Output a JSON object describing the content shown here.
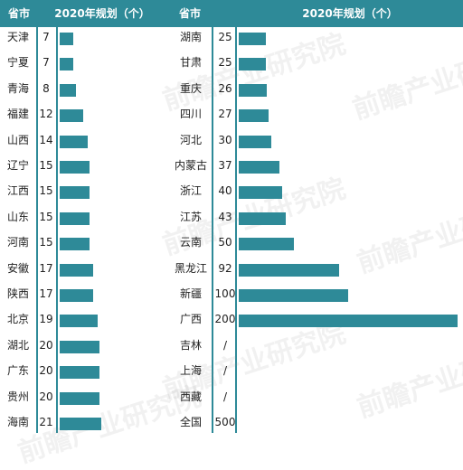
{
  "header": {
    "col1": "省市",
    "col2": "2020年规划（个）",
    "col3": "省市",
    "col4": "2020年规划（个）"
  },
  "watermark": "前瞻产业研究院",
  "accent_color": "#2e8a98",
  "chart_data": [
    {
      "type": "bar",
      "categories": [
        "天津",
        "宁夏",
        "青海",
        "福建",
        "山西",
        "辽宁",
        "江西",
        "山东",
        "河南",
        "安徽",
        "陕西",
        "北京",
        "湖北",
        "广东",
        "贵州",
        "海南"
      ],
      "values": [
        7,
        7,
        8,
        12,
        14,
        15,
        15,
        15,
        15,
        17,
        17,
        19,
        20,
        20,
        20,
        21
      ],
      "labels": [
        "7",
        "7",
        "8",
        "12",
        "14",
        "15",
        "15",
        "15",
        "15",
        "17",
        "17",
        "19",
        "20",
        "20",
        "20",
        "21"
      ],
      "scale_max": 200
    },
    {
      "type": "bar",
      "categories": [
        "湖南",
        "甘肃",
        "重庆",
        "四川",
        "河北",
        "内蒙古",
        "浙江",
        "江苏",
        "云南",
        "黑龙江",
        "新疆",
        "广西",
        "吉林",
        "上海",
        "西藏",
        "全国"
      ],
      "values": [
        25,
        25,
        26,
        27,
        30,
        37,
        40,
        43,
        50,
        92,
        100,
        200,
        null,
        null,
        null,
        null
      ],
      "labels": [
        "25",
        "25",
        "26",
        "27",
        "30",
        "37",
        "40",
        "43",
        "50",
        "92",
        "100",
        "200",
        "/",
        "/",
        "/",
        "500"
      ],
      "scale_max": 200
    }
  ]
}
